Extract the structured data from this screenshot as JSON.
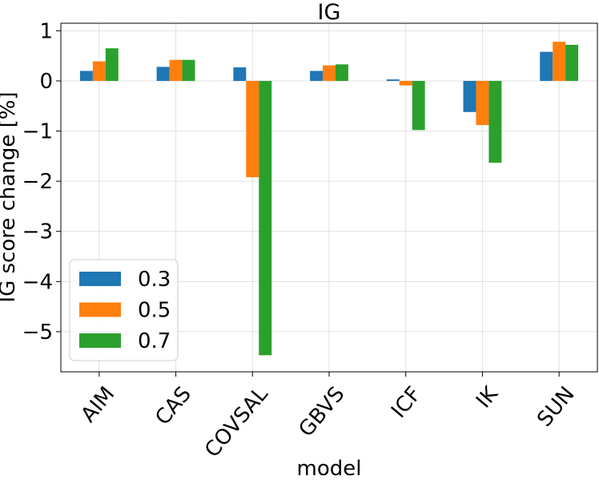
{
  "chart_data": {
    "type": "bar",
    "title": "IG",
    "xlabel": "model",
    "ylabel": "IG score change [%]",
    "categories": [
      "AIM",
      "CAS",
      "COVSAL",
      "GBVS",
      "ICF",
      "IK",
      "SUN"
    ],
    "series": [
      {
        "name": "0.3",
        "color": "#1f77b4",
        "values": [
          0.2,
          0.28,
          0.27,
          0.2,
          0.03,
          -0.62,
          0.58
        ]
      },
      {
        "name": "0.5",
        "color": "#ff7f0e",
        "values": [
          0.39,
          0.42,
          -1.92,
          0.31,
          -0.09,
          -0.88,
          0.78
        ]
      },
      {
        "name": "0.7",
        "color": "#2ca02c",
        "values": [
          0.65,
          0.42,
          -5.47,
          0.33,
          -0.98,
          -1.63,
          0.72
        ]
      }
    ],
    "ylim": [
      -5.8,
      1.15
    ],
    "yticks": [
      1,
      0,
      -1,
      -2,
      -3,
      -4,
      -5
    ],
    "ytick_labels": [
      "1",
      "0",
      "−1",
      "−2",
      "−3",
      "−4",
      "−5"
    ],
    "grid": true,
    "legend_position": "lower-left"
  }
}
